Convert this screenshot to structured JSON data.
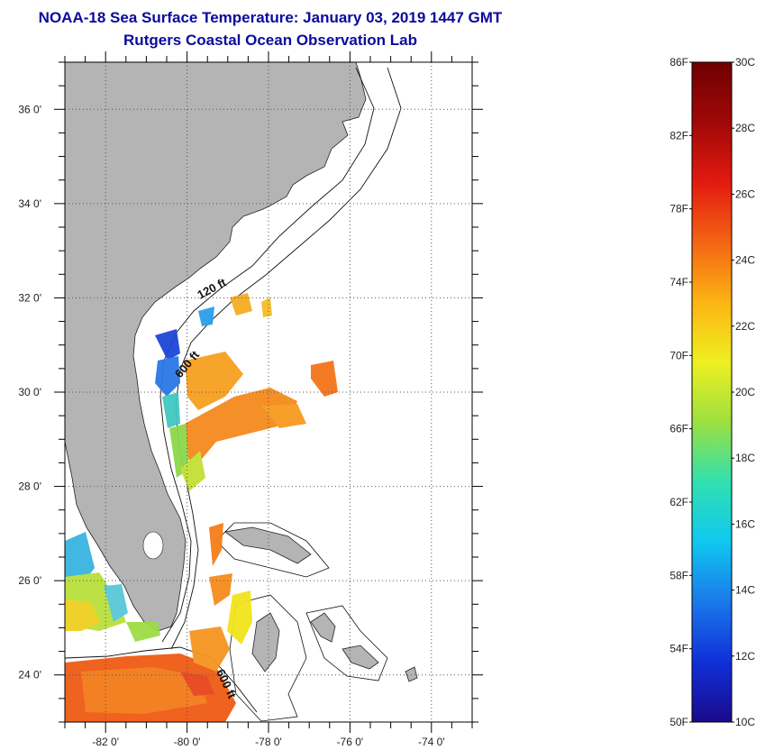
{
  "title": {
    "line1": "NOAA-18 Sea Surface Temperature:  January 03, 2019 1447 GMT",
    "line2": "Rutgers Coastal Ocean Observation Lab"
  },
  "map": {
    "lat_range": [
      23,
      37
    ],
    "lon_range": [
      -83,
      -73
    ],
    "lat_ticks": [
      {
        "value": 24,
        "label": "24 0'"
      },
      {
        "value": 26,
        "label": "26 0'"
      },
      {
        "value": 28,
        "label": "28 0'"
      },
      {
        "value": 30,
        "label": "30 0'"
      },
      {
        "value": 32,
        "label": "32 0'"
      },
      {
        "value": 34,
        "label": "34 0'"
      },
      {
        "value": 36,
        "label": "36 0'"
      }
    ],
    "lon_ticks": [
      {
        "value": -82,
        "label": "-82 0'"
      },
      {
        "value": -80,
        "label": "-80 0'"
      },
      {
        "value": -78,
        "label": "-78 0'"
      },
      {
        "value": -76,
        "label": "-76 0'"
      },
      {
        "value": -74,
        "label": "-74 0'"
      }
    ],
    "contour_labels": [
      "120 ft",
      "600 ft",
      "600 ft"
    ],
    "colors": {
      "land": "#b4b4b4",
      "water": "#ffffff",
      "grid": "#555555"
    }
  },
  "colorbar": {
    "fahrenheit_labels": [
      "86F",
      "82F",
      "78F",
      "74F",
      "70F",
      "66F",
      "62F",
      "58F",
      "54F",
      "50F"
    ],
    "celsius_labels": [
      "30C",
      "28C",
      "26C",
      "24C",
      "22C",
      "20C",
      "18C",
      "16C",
      "14C",
      "12C",
      "10C"
    ],
    "range_f": [
      50,
      86
    ],
    "range_c": [
      10,
      30
    ],
    "gradient": [
      "#1a0a8c",
      "#1030d8",
      "#1a78ea",
      "#10c8f0",
      "#30e0b0",
      "#9ce040",
      "#eef020",
      "#fcb414",
      "#f46414",
      "#e21a10",
      "#a00808",
      "#700000"
    ]
  }
}
